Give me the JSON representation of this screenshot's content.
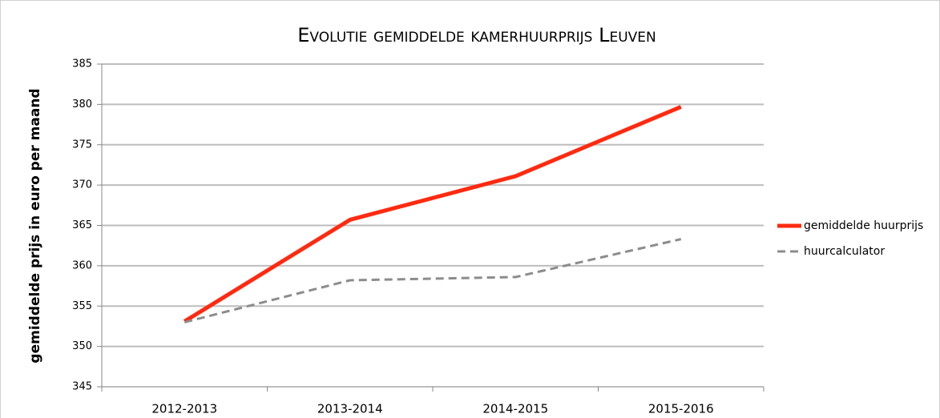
{
  "chart_data": {
    "type": "line",
    "title": "Evolutie gemiddelde kamerhuurprijs Leuven",
    "y_label": "gemiddelde prijs in euro per maand",
    "categories": [
      "2012-2013",
      "2013-2014",
      "2014-2015",
      "2015-2016"
    ],
    "series": [
      {
        "name": "gemiddelde huurprijs",
        "color": "#ff2a10",
        "dash": false,
        "values": [
          353.1,
          365.7,
          371.1,
          379.7
        ]
      },
      {
        "name": "huurcalculator",
        "color": "#8c8c8c",
        "dash": true,
        "values": [
          353.0,
          358.2,
          358.6,
          363.3
        ]
      }
    ],
    "ylim": [
      345,
      385
    ],
    "yticks": [
      345,
      350,
      355,
      360,
      365,
      370,
      375,
      380,
      385
    ],
    "grid": true,
    "legend": "right"
  }
}
